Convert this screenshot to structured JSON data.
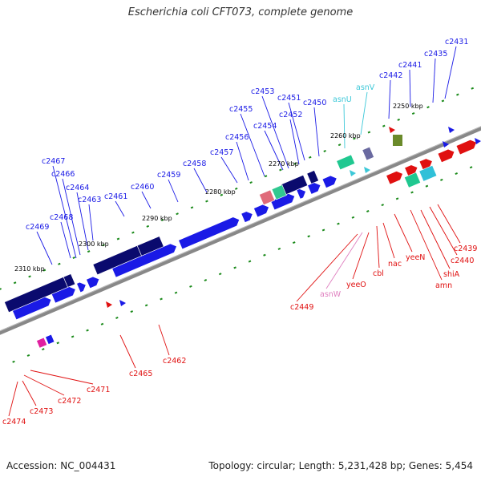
{
  "title": "Escherichia coli CFT073, complete genome",
  "footer": {
    "accession": "Accession: NC_004431",
    "summary": "Topology: circular; Length: 5,231,428 bp; Genes: 5,454"
  },
  "colors": {
    "forward_dark": "#0a0a6e",
    "forward_blue": "#1a1ae6",
    "reverse_red": "#e01010",
    "trna_cyan": "#3cc8d8",
    "rrna_pink": "#e080c0",
    "scale_green": "#1a8a1a",
    "backbone": "#888888"
  },
  "scale_labels": [
    "2250 kbp",
    "2260 kbp",
    "2270 kbp",
    "2280 kbp",
    "2290 kbp",
    "2300 kbp",
    "2310 kbp"
  ],
  "top_labels": [
    {
      "text": "c2431",
      "color": "blue"
    },
    {
      "text": "c2435",
      "color": "blue"
    },
    {
      "text": "c2441",
      "color": "blue"
    },
    {
      "text": "c2442",
      "color": "blue"
    },
    {
      "text": "asnV",
      "color": "cyan"
    },
    {
      "text": "asnU",
      "color": "cyan"
    },
    {
      "text": "c2450",
      "color": "blue"
    },
    {
      "text": "c2451",
      "color": "blue"
    },
    {
      "text": "c2452",
      "color": "blue"
    },
    {
      "text": "c2453",
      "color": "blue"
    },
    {
      "text": "c2454",
      "color": "blue"
    },
    {
      "text": "c2455",
      "color": "blue"
    },
    {
      "text": "c2456",
      "color": "blue"
    },
    {
      "text": "c2457",
      "color": "blue"
    },
    {
      "text": "c2458",
      "color": "blue"
    },
    {
      "text": "c2459",
      "color": "blue"
    },
    {
      "text": "c2460",
      "color": "blue"
    },
    {
      "text": "c2461",
      "color": "blue"
    },
    {
      "text": "c2463",
      "color": "blue"
    },
    {
      "text": "c2464",
      "color": "blue"
    },
    {
      "text": "c2466",
      "color": "blue"
    },
    {
      "text": "c2467",
      "color": "blue"
    },
    {
      "text": "c2468",
      "color": "blue"
    },
    {
      "text": "c2469",
      "color": "blue"
    }
  ],
  "bottom_labels": [
    {
      "text": "c2439",
      "color": "red"
    },
    {
      "text": "c2440",
      "color": "red"
    },
    {
      "text": "shiA",
      "color": "red"
    },
    {
      "text": "amn",
      "color": "red"
    },
    {
      "text": "yeeN",
      "color": "red"
    },
    {
      "text": "nac",
      "color": "red"
    },
    {
      "text": "cbl",
      "color": "red"
    },
    {
      "text": "yeeO",
      "color": "red"
    },
    {
      "text": "asnW",
      "color": "pink"
    },
    {
      "text": "c2449",
      "color": "red"
    },
    {
      "text": "c2462",
      "color": "red"
    },
    {
      "text": "c2465",
      "color": "red"
    },
    {
      "text": "c2471",
      "color": "red"
    },
    {
      "text": "c2472",
      "color": "red"
    },
    {
      "text": "c2473",
      "color": "red"
    },
    {
      "text": "c2474",
      "color": "red"
    }
  ]
}
